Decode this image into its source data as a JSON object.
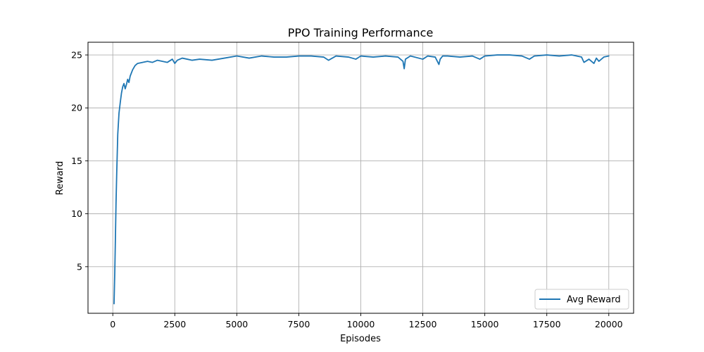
{
  "chart_data": {
    "type": "line",
    "title": "PPO Training Performance",
    "xlabel": "Episodes",
    "ylabel": "Reward",
    "xlim": [
      -1000,
      21000
    ],
    "ylim": [
      0.6,
      26.2
    ],
    "x_ticks": [
      0,
      2500,
      5000,
      7500,
      10000,
      12500,
      15000,
      17500,
      20000
    ],
    "y_ticks": [
      5,
      10,
      15,
      20,
      25
    ],
    "grid": true,
    "legend_position": "lower-right",
    "colors": {
      "series": "#1f77b4",
      "grid": "#b0b0b0"
    },
    "series": [
      {
        "name": "Avg Reward",
        "x": [
          50,
          80,
          100,
          130,
          160,
          200,
          250,
          300,
          350,
          400,
          450,
          500,
          550,
          600,
          650,
          700,
          800,
          900,
          1000,
          1200,
          1400,
          1600,
          1800,
          2000,
          2200,
          2400,
          2500,
          2600,
          2800,
          3000,
          3200,
          3500,
          4000,
          4500,
          5000,
          5500,
          6000,
          6500,
          7000,
          7500,
          8000,
          8500,
          8700,
          9000,
          9500,
          9800,
          10000,
          10500,
          11000,
          11500,
          11700,
          11750,
          11800,
          12000,
          12500,
          12700,
          13000,
          13150,
          13200,
          13300,
          13500,
          14000,
          14500,
          14800,
          15000,
          15500,
          16000,
          16500,
          16800,
          17000,
          17500,
          18000,
          18500,
          18900,
          19000,
          19200,
          19400,
          19500,
          19600,
          19800,
          20000
        ],
        "y": [
          1.5,
          4.5,
          7.0,
          11.0,
          14.0,
          17.5,
          19.5,
          20.5,
          21.4,
          22.0,
          22.3,
          21.8,
          22.2,
          22.7,
          22.4,
          23.0,
          23.6,
          24.0,
          24.2,
          24.3,
          24.4,
          24.3,
          24.5,
          24.4,
          24.3,
          24.6,
          24.2,
          24.5,
          24.7,
          24.6,
          24.5,
          24.6,
          24.5,
          24.7,
          24.9,
          24.7,
          24.9,
          24.8,
          24.8,
          24.9,
          24.9,
          24.8,
          24.5,
          24.9,
          24.8,
          24.6,
          24.9,
          24.8,
          24.9,
          24.8,
          24.4,
          23.7,
          24.6,
          24.9,
          24.6,
          24.9,
          24.8,
          24.1,
          24.6,
          24.9,
          24.9,
          24.8,
          24.9,
          24.6,
          24.9,
          25.0,
          25.0,
          24.9,
          24.6,
          24.9,
          25.0,
          24.9,
          25.0,
          24.8,
          24.3,
          24.6,
          24.2,
          24.7,
          24.4,
          24.8,
          24.9
        ]
      }
    ]
  }
}
